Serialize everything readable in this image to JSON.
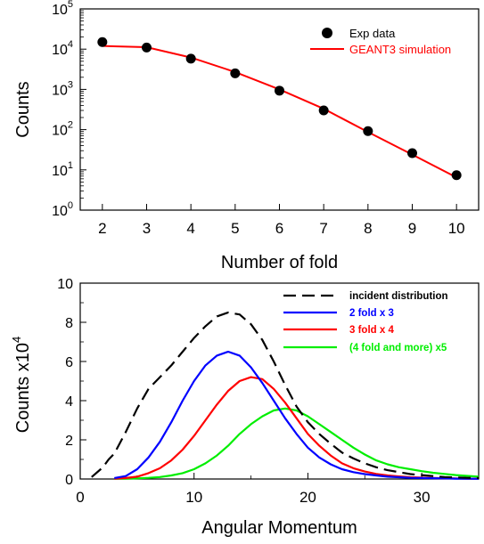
{
  "chart_data": [
    {
      "type": "scatter",
      "xlabel": "Number of fold",
      "ylabel": "Counts",
      "xlim": [
        1.5,
        10.5
      ],
      "ylim": [
        1,
        100000
      ],
      "yscale": "log",
      "x_ticks": [
        "2",
        "3",
        "4",
        "5",
        "6",
        "7",
        "8",
        "9",
        "10"
      ],
      "y_ticks": [
        {
          "base": "10",
          "exp": "0"
        },
        {
          "base": "10",
          "exp": "1"
        },
        {
          "base": "10",
          "exp": "2"
        },
        {
          "base": "10",
          "exp": "3"
        },
        {
          "base": "10",
          "exp": "4"
        },
        {
          "base": "10",
          "exp": "5"
        }
      ],
      "legend_position": "top-right",
      "series": [
        {
          "name": "Exp data",
          "style": "markers",
          "color": "#000000",
          "x": [
            2,
            3,
            4,
            5,
            6,
            7,
            8,
            9,
            10
          ],
          "y": [
            15000,
            11000,
            5800,
            2500,
            930,
            300,
            92,
            26,
            7.4
          ]
        },
        {
          "name": "GEANT3 simulation",
          "style": "line",
          "color": "#ff0000",
          "x": [
            2,
            3,
            4,
            5,
            6,
            7,
            8,
            9,
            10
          ],
          "y": [
            12000,
            11200,
            6200,
            2700,
            1000,
            330,
            87,
            24,
            6.5
          ]
        }
      ]
    },
    {
      "type": "line",
      "xlabel": "Angular Momentum",
      "ylabel": {
        "text": "Counts x10",
        "sup": "4"
      },
      "xlim": [
        0,
        35
      ],
      "ylim": [
        0,
        10
      ],
      "x_ticks": [
        "0",
        "10",
        "20",
        "30"
      ],
      "y_ticks": [
        "0",
        "2",
        "4",
        "6",
        "8",
        "10"
      ],
      "legend_position": "top-right",
      "series": [
        {
          "name": "incident distribution",
          "color": "#000000",
          "dashed": true,
          "x": [
            1,
            2,
            2.5,
            3,
            4,
            5,
            6,
            7,
            8,
            9,
            10,
            11,
            12,
            13,
            14,
            15,
            16,
            17,
            18,
            19,
            20,
            21,
            22,
            23,
            24,
            25,
            26,
            27,
            28,
            29,
            30,
            31,
            32,
            33,
            34,
            35
          ],
          "y": [
            0.1,
            0.6,
            1.0,
            1.3,
            2.4,
            3.6,
            4.6,
            5.2,
            5.8,
            6.5,
            7.2,
            7.8,
            8.3,
            8.5,
            8.4,
            7.9,
            7.1,
            6.0,
            4.8,
            3.7,
            2.9,
            2.3,
            1.8,
            1.35,
            1.05,
            0.8,
            0.6,
            0.45,
            0.35,
            0.25,
            0.2,
            0.15,
            0.1,
            0.08,
            0.06,
            0.05
          ]
        },
        {
          "name": "2 fold x 3",
          "color": "#0000ff",
          "dashed": false,
          "x": [
            3,
            4,
            5,
            6,
            7,
            8,
            9,
            10,
            11,
            12,
            13,
            14,
            15,
            16,
            17,
            18,
            19,
            20,
            21,
            22,
            23,
            24,
            25,
            26,
            27,
            28,
            29,
            30,
            31,
            32,
            33,
            34,
            35
          ],
          "y": [
            0.05,
            0.15,
            0.5,
            1.1,
            1.9,
            2.9,
            4.0,
            5.0,
            5.8,
            6.3,
            6.5,
            6.3,
            5.7,
            4.9,
            4.0,
            3.1,
            2.3,
            1.6,
            1.1,
            0.75,
            0.5,
            0.35,
            0.25,
            0.18,
            0.12,
            0.09,
            0.06,
            0.05,
            0.04,
            0.03,
            0.02,
            0.02,
            0.01
          ]
        },
        {
          "name": "3 fold x 4",
          "color": "#ff0000",
          "dashed": false,
          "x": [
            3,
            4,
            5,
            6,
            7,
            8,
            9,
            10,
            11,
            12,
            13,
            14,
            15,
            16,
            17,
            18,
            19,
            20,
            21,
            22,
            23,
            24,
            25,
            26,
            27,
            28,
            29,
            30,
            31,
            32,
            33,
            34,
            35
          ],
          "y": [
            0.02,
            0.05,
            0.12,
            0.3,
            0.55,
            0.95,
            1.5,
            2.2,
            3.0,
            3.8,
            4.5,
            5.0,
            5.2,
            5.1,
            4.6,
            3.9,
            3.1,
            2.3,
            1.7,
            1.2,
            0.8,
            0.55,
            0.38,
            0.26,
            0.18,
            0.13,
            0.09,
            0.07,
            0.05,
            0.04,
            0.03,
            0.02,
            0.02
          ]
        },
        {
          "name": "(4  fold and more) x5",
          "color": "#00ee00",
          "dashed": false,
          "x": [
            3,
            4,
            5,
            6,
            7,
            8,
            9,
            10,
            11,
            12,
            13,
            14,
            15,
            16,
            17,
            18,
            19,
            20,
            21,
            22,
            23,
            24,
            25,
            26,
            27,
            28,
            29,
            30,
            31,
            32,
            33,
            34,
            35
          ],
          "y": [
            0.01,
            0.02,
            0.03,
            0.06,
            0.1,
            0.18,
            0.3,
            0.5,
            0.8,
            1.2,
            1.7,
            2.3,
            2.8,
            3.2,
            3.5,
            3.6,
            3.5,
            3.2,
            2.8,
            2.4,
            2.0,
            1.6,
            1.25,
            0.95,
            0.75,
            0.6,
            0.5,
            0.4,
            0.32,
            0.26,
            0.2,
            0.16,
            0.12
          ]
        }
      ]
    }
  ]
}
